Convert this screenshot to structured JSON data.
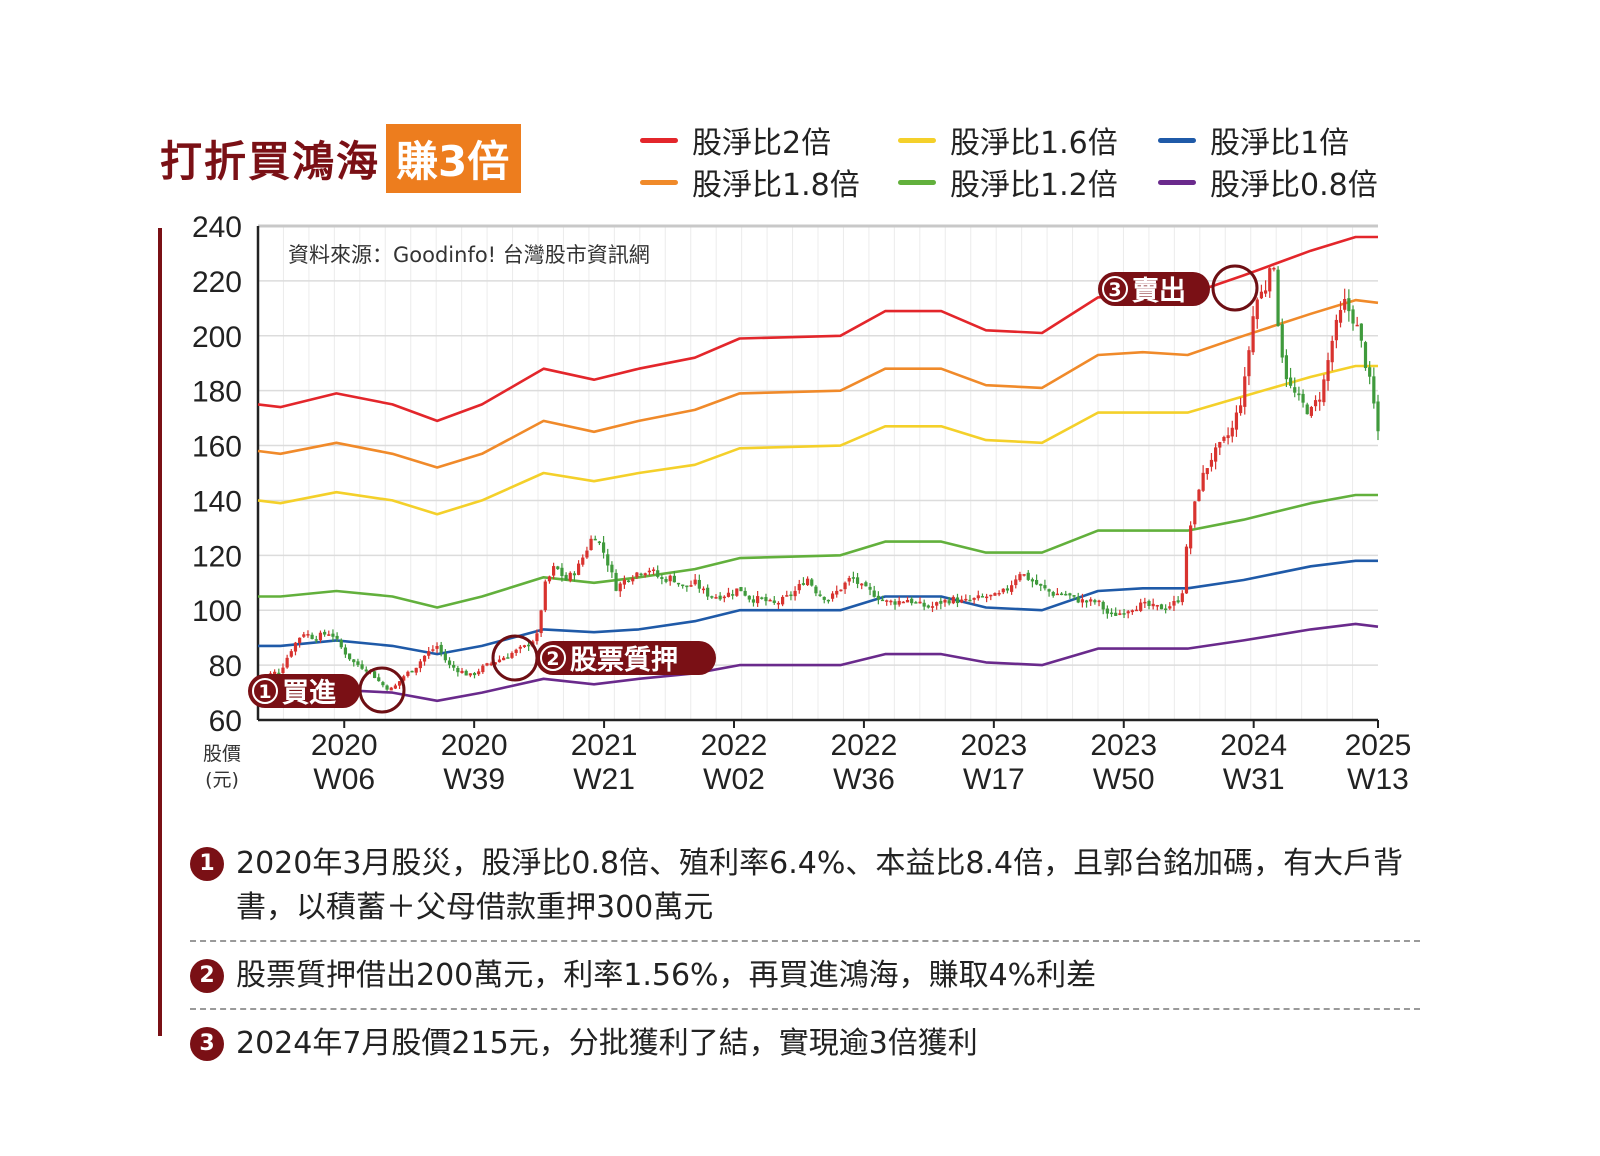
{
  "title": {
    "main": "打折買鴻海",
    "tag": "賺3倍"
  },
  "legend": [
    {
      "name": "股淨比2倍",
      "color": "#e3262b"
    },
    {
      "name": "股淨比1.8倍",
      "color": "#f08a2a"
    },
    {
      "name": "股淨比1.6倍",
      "color": "#f4d02a"
    },
    {
      "name": "股淨比1.2倍",
      "color": "#62b03c"
    },
    {
      "name": "股淨比1倍",
      "color": "#1f5aa8"
    },
    {
      "name": "股淨比0.8倍",
      "color": "#6a2a8c"
    }
  ],
  "chart_data": {
    "type": "line",
    "source_note": "資料來源：Goodinfo! 台灣股市資訊網",
    "ylabel": "股價\n(元)",
    "ylim": [
      60,
      240
    ],
    "yticks": [
      60,
      80,
      100,
      120,
      140,
      160,
      180,
      200,
      220,
      240
    ],
    "xticks": [
      {
        "year": "2020",
        "week": "W06",
        "t": 0.077
      },
      {
        "year": "2020",
        "week": "W39",
        "t": 0.193
      },
      {
        "year": "2021",
        "week": "W21",
        "t": 0.309
      },
      {
        "year": "2022",
        "week": "W02",
        "t": 0.425
      },
      {
        "year": "2022",
        "week": "W36",
        "t": 0.541
      },
      {
        "year": "2023",
        "week": "W17",
        "t": 0.657
      },
      {
        "year": "2023",
        "week": "W50",
        "t": 0.773
      },
      {
        "year": "2024",
        "week": "W31",
        "t": 0.889
      },
      {
        "year": "2025",
        "week": "W13",
        "t": 1.0
      }
    ],
    "grid": true,
    "series": [
      {
        "name": "股淨比2倍",
        "color": "#e3262b",
        "points": [
          [
            0,
            175
          ],
          [
            0.02,
            174
          ],
          [
            0.07,
            179
          ],
          [
            0.12,
            175
          ],
          [
            0.16,
            169
          ],
          [
            0.2,
            175
          ],
          [
            0.255,
            188
          ],
          [
            0.3,
            184
          ],
          [
            0.34,
            188
          ],
          [
            0.39,
            192
          ],
          [
            0.43,
            199
          ],
          [
            0.52,
            200
          ],
          [
            0.56,
            209
          ],
          [
            0.61,
            209
          ],
          [
            0.65,
            202
          ],
          [
            0.7,
            201
          ],
          [
            0.75,
            214
          ],
          [
            0.79,
            215
          ],
          [
            0.83,
            215
          ],
          [
            0.88,
            222
          ],
          [
            0.94,
            231
          ],
          [
            0.98,
            236
          ],
          [
            1,
            236
          ]
        ]
      },
      {
        "name": "股淨比1.8倍",
        "color": "#f08a2a",
        "points": [
          [
            0,
            158
          ],
          [
            0.02,
            157
          ],
          [
            0.07,
            161
          ],
          [
            0.12,
            157
          ],
          [
            0.16,
            152
          ],
          [
            0.2,
            157
          ],
          [
            0.255,
            169
          ],
          [
            0.3,
            165
          ],
          [
            0.34,
            169
          ],
          [
            0.39,
            173
          ],
          [
            0.43,
            179
          ],
          [
            0.52,
            180
          ],
          [
            0.56,
            188
          ],
          [
            0.61,
            188
          ],
          [
            0.65,
            182
          ],
          [
            0.7,
            181
          ],
          [
            0.75,
            193
          ],
          [
            0.79,
            194
          ],
          [
            0.83,
            193
          ],
          [
            0.88,
            200
          ],
          [
            0.94,
            208
          ],
          [
            0.98,
            213
          ],
          [
            1,
            212
          ]
        ]
      },
      {
        "name": "股淨比1.6倍",
        "color": "#f4d02a",
        "points": [
          [
            0,
            140
          ],
          [
            0.02,
            139
          ],
          [
            0.07,
            143
          ],
          [
            0.12,
            140
          ],
          [
            0.16,
            135
          ],
          [
            0.2,
            140
          ],
          [
            0.255,
            150
          ],
          [
            0.3,
            147
          ],
          [
            0.34,
            150
          ],
          [
            0.39,
            153
          ],
          [
            0.43,
            159
          ],
          [
            0.52,
            160
          ],
          [
            0.56,
            167
          ],
          [
            0.61,
            167
          ],
          [
            0.65,
            162
          ],
          [
            0.7,
            161
          ],
          [
            0.75,
            172
          ],
          [
            0.79,
            172
          ],
          [
            0.83,
            172
          ],
          [
            0.88,
            178
          ],
          [
            0.94,
            185
          ],
          [
            0.98,
            189
          ],
          [
            1,
            189
          ]
        ]
      },
      {
        "name": "股淨比1.2倍",
        "color": "#62b03c",
        "points": [
          [
            0,
            105
          ],
          [
            0.02,
            105
          ],
          [
            0.07,
            107
          ],
          [
            0.12,
            105
          ],
          [
            0.16,
            101
          ],
          [
            0.2,
            105
          ],
          [
            0.255,
            112
          ],
          [
            0.3,
            110
          ],
          [
            0.34,
            112
          ],
          [
            0.39,
            115
          ],
          [
            0.43,
            119
          ],
          [
            0.52,
            120
          ],
          [
            0.56,
            125
          ],
          [
            0.61,
            125
          ],
          [
            0.65,
            121
          ],
          [
            0.7,
            121
          ],
          [
            0.75,
            129
          ],
          [
            0.79,
            129
          ],
          [
            0.83,
            129
          ],
          [
            0.88,
            133
          ],
          [
            0.94,
            139
          ],
          [
            0.98,
            142
          ],
          [
            1,
            142
          ]
        ]
      },
      {
        "name": "股淨比1倍",
        "color": "#1f5aa8",
        "points": [
          [
            0,
            87
          ],
          [
            0.02,
            87
          ],
          [
            0.07,
            89
          ],
          [
            0.12,
            87
          ],
          [
            0.16,
            84
          ],
          [
            0.2,
            87
          ],
          [
            0.255,
            93
          ],
          [
            0.3,
            92
          ],
          [
            0.34,
            93
          ],
          [
            0.39,
            96
          ],
          [
            0.43,
            100
          ],
          [
            0.52,
            100
          ],
          [
            0.56,
            105
          ],
          [
            0.61,
            105
          ],
          [
            0.65,
            101
          ],
          [
            0.7,
            100
          ],
          [
            0.75,
            107
          ],
          [
            0.79,
            108
          ],
          [
            0.83,
            108
          ],
          [
            0.88,
            111
          ],
          [
            0.94,
            116
          ],
          [
            0.98,
            118
          ],
          [
            1,
            118
          ]
        ]
      },
      {
        "name": "股淨比0.8倍",
        "color": "#6a2a8c",
        "points": [
          [
            0,
            70
          ],
          [
            0.02,
            70
          ],
          [
            0.07,
            71
          ],
          [
            0.12,
            70
          ],
          [
            0.16,
            67
          ],
          [
            0.2,
            70
          ],
          [
            0.255,
            75
          ],
          [
            0.3,
            73
          ],
          [
            0.34,
            75
          ],
          [
            0.39,
            77
          ],
          [
            0.43,
            80
          ],
          [
            0.52,
            80
          ],
          [
            0.56,
            84
          ],
          [
            0.61,
            84
          ],
          [
            0.65,
            81
          ],
          [
            0.7,
            80
          ],
          [
            0.75,
            86
          ],
          [
            0.79,
            86
          ],
          [
            0.83,
            86
          ],
          [
            0.88,
            89
          ],
          [
            0.94,
            93
          ],
          [
            0.98,
            95
          ],
          [
            1,
            94
          ]
        ]
      }
    ],
    "price": {
      "name": "股價",
      "up_color": "#d8332f",
      "down_color": "#3f9a3c",
      "points": [
        [
          0,
          75
        ],
        [
          0.02,
          78
        ],
        [
          0.03,
          86
        ],
        [
          0.04,
          92
        ],
        [
          0.05,
          90
        ],
        [
          0.065,
          92
        ],
        [
          0.075,
          86
        ],
        [
          0.085,
          81
        ],
        [
          0.1,
          78
        ],
        [
          0.11,
          73
        ],
        [
          0.12,
          71
        ],
        [
          0.13,
          76
        ],
        [
          0.14,
          79
        ],
        [
          0.15,
          84
        ],
        [
          0.16,
          87
        ],
        [
          0.17,
          80
        ],
        [
          0.18,
          78
        ],
        [
          0.19,
          76
        ],
        [
          0.2,
          79
        ],
        [
          0.21,
          81
        ],
        [
          0.22,
          83
        ],
        [
          0.23,
          85
        ],
        [
          0.24,
          87
        ],
        [
          0.25,
          91
        ],
        [
          0.255,
          108
        ],
        [
          0.265,
          116
        ],
        [
          0.275,
          111
        ],
        [
          0.285,
          115
        ],
        [
          0.3,
          128
        ],
        [
          0.31,
          120
        ],
        [
          0.32,
          108
        ],
        [
          0.33,
          112
        ],
        [
          0.34,
          114
        ],
        [
          0.35,
          115
        ],
        [
          0.36,
          111
        ],
        [
          0.37,
          112
        ],
        [
          0.38,
          108
        ],
        [
          0.39,
          110
        ],
        [
          0.4,
          106
        ],
        [
          0.41,
          105
        ],
        [
          0.42,
          106
        ],
        [
          0.43,
          108
        ],
        [
          0.44,
          104
        ],
        [
          0.45,
          104
        ],
        [
          0.46,
          102
        ],
        [
          0.47,
          104
        ],
        [
          0.48,
          107
        ],
        [
          0.49,
          112
        ],
        [
          0.5,
          106
        ],
        [
          0.51,
          104
        ],
        [
          0.52,
          108
        ],
        [
          0.53,
          112
        ],
        [
          0.54,
          108
        ],
        [
          0.55,
          106
        ],
        [
          0.56,
          103
        ],
        [
          0.57,
          103
        ],
        [
          0.58,
          104
        ],
        [
          0.59,
          102
        ],
        [
          0.6,
          101
        ],
        [
          0.61,
          103
        ],
        [
          0.62,
          104
        ],
        [
          0.63,
          103
        ],
        [
          0.64,
          104
        ],
        [
          0.65,
          105
        ],
        [
          0.66,
          105
        ],
        [
          0.67,
          108
        ],
        [
          0.68,
          114
        ],
        [
          0.69,
          111
        ],
        [
          0.7,
          108
        ],
        [
          0.71,
          106
        ],
        [
          0.72,
          106
        ],
        [
          0.73,
          104
        ],
        [
          0.74,
          103
        ],
        [
          0.75,
          103
        ],
        [
          0.76,
          98
        ],
        [
          0.77,
          99
        ],
        [
          0.78,
          101
        ],
        [
          0.79,
          102
        ],
        [
          0.8,
          101
        ],
        [
          0.81,
          101
        ],
        [
          0.82,
          103
        ],
        [
          0.825,
          106
        ],
        [
          0.83,
          126
        ],
        [
          0.84,
          145
        ],
        [
          0.85,
          155
        ],
        [
          0.86,
          160
        ],
        [
          0.87,
          166
        ],
        [
          0.88,
          180
        ],
        [
          0.89,
          212
        ],
        [
          0.9,
          218
        ],
        [
          0.905,
          232
        ],
        [
          0.91,
          208
        ],
        [
          0.915,
          192
        ],
        [
          0.92,
          182
        ],
        [
          0.93,
          176
        ],
        [
          0.94,
          172
        ],
        [
          0.95,
          180
        ],
        [
          0.96,
          200
        ],
        [
          0.97,
          212
        ],
        [
          0.98,
          205
        ],
        [
          0.985,
          197
        ],
        [
          0.99,
          188
        ],
        [
          0.995,
          178
        ],
        [
          1,
          165
        ]
      ]
    },
    "annotations": [
      {
        "num": "1",
        "label": "買進",
        "x": 0.09,
        "y": 71
      },
      {
        "num": "2",
        "label": "股票質押",
        "x": 0.24,
        "y": 84
      },
      {
        "num": "3",
        "label": "賣出",
        "x": 0.897,
        "y": 219
      }
    ]
  },
  "notes": [
    {
      "num": "1",
      "text": "2020年3月股災，股淨比0.8倍、殖利率6.4%、本益比8.4倍，且郭台銘加碼，有大戶背書，以積蓄＋父母借款重押300萬元"
    },
    {
      "num": "2",
      "text": "股票質押借出200萬元，利率1.56%，再買進鴻海，賺取4%利差"
    },
    {
      "num": "3",
      "text": "2024年7月股價215元，分批獲利了結，實現逾3倍獲利"
    }
  ]
}
